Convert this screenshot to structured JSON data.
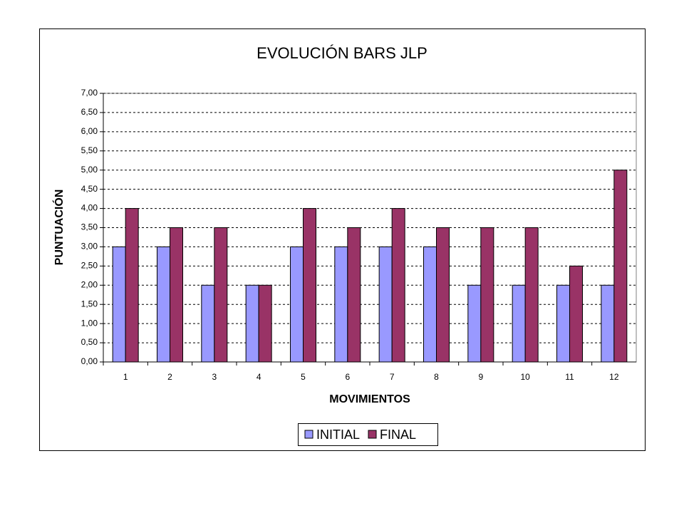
{
  "chart_data": {
    "type": "bar",
    "title": "EVOLUCIÓN  BARS JLP",
    "x_label": "MOVIMIENTOS",
    "y_label": "PUNTUACIÓN",
    "categories": [
      "1",
      "2",
      "3",
      "4",
      "5",
      "6",
      "7",
      "8",
      "9",
      "10",
      "11",
      "12"
    ],
    "series": [
      {
        "name": "INITIAL",
        "color": "#9999ff",
        "values": [
          3,
          3,
          2,
          2,
          3,
          3,
          3,
          3,
          2,
          2,
          2,
          2
        ]
      },
      {
        "name": "FINAL",
        "color": "#993366",
        "values": [
          4,
          3.5,
          3.5,
          2,
          4,
          3.5,
          4,
          3.5,
          3.5,
          3.5,
          2.5,
          5
        ]
      }
    ],
    "ylim": [
      0,
      7
    ],
    "yticks": [
      {
        "value": 0,
        "label": "0,00"
      },
      {
        "value": 0.5,
        "label": "0,50"
      },
      {
        "value": 1,
        "label": "1,00"
      },
      {
        "value": 1.5,
        "label": "1,50"
      },
      {
        "value": 2,
        "label": "2,00"
      },
      {
        "value": 2.5,
        "label": "2,50"
      },
      {
        "value": 3,
        "label": "3,00"
      },
      {
        "value": 3.5,
        "label": "3,50"
      },
      {
        "value": 4,
        "label": "4,00"
      },
      {
        "value": 4.5,
        "label": "4,50"
      },
      {
        "value": 5,
        "label": "5,00"
      },
      {
        "value": 5.5,
        "label": "5,50"
      },
      {
        "value": 6,
        "label": "6,00"
      },
      {
        "value": 6.5,
        "label": "6,50"
      },
      {
        "value": 7,
        "label": "7,00"
      }
    ],
    "grid": true,
    "legend": "bottom"
  }
}
